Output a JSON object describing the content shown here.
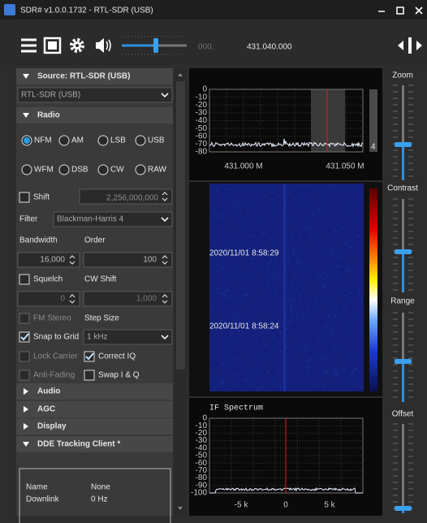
{
  "window": {
    "title": "SDR# v1.0.0.1732 - RTL-SDR (USB)"
  },
  "toolbar": {
    "frequency_prefix": "000.",
    "frequency": "431.040.000"
  },
  "source": {
    "header": "Source: RTL-SDR (USB)",
    "device": "RTL-SDR (USB)"
  },
  "radio": {
    "header": "Radio",
    "modes": [
      {
        "label": "NFM",
        "selected": true
      },
      {
        "label": "AM",
        "selected": false
      },
      {
        "label": "LSB",
        "selected": false
      },
      {
        "label": "USB",
        "selected": false
      },
      {
        "label": "WFM",
        "selected": false
      },
      {
        "label": "DSB",
        "selected": false
      },
      {
        "label": "CW",
        "selected": false
      },
      {
        "label": "RAW",
        "selected": false
      }
    ],
    "shift": {
      "label": "Shift",
      "checked": false,
      "value": "2,256,000,000"
    },
    "filter": {
      "label": "Filter",
      "value": "Blackman-Harris 4"
    },
    "bandwidth": {
      "label": "Bandwidth",
      "value": "16,000"
    },
    "order": {
      "label": "Order",
      "value": "100"
    },
    "squelch": {
      "label": "Squelch",
      "checked": false,
      "value": "0"
    },
    "cw_shift": {
      "label": "CW Shift",
      "value": "1,000"
    },
    "fm_stereo": {
      "label": "FM Stereo",
      "checked": false,
      "enabled": false
    },
    "step_size": {
      "label": "Step Size",
      "value": "1 kHz"
    },
    "snap_to_grid": {
      "label": "Snap to Grid",
      "checked": true
    },
    "lock_carrier": {
      "label": "Lock Carrier",
      "checked": false,
      "enabled": false
    },
    "correct_iq": {
      "label": "Correct IQ",
      "checked": true
    },
    "anti_fading": {
      "label": "Anti-Fading",
      "checked": false,
      "enabled": false
    },
    "swap_iq": {
      "label": "Swap I & Q",
      "checked": false
    }
  },
  "sections": [
    "Audio",
    "AGC",
    "Display",
    "DDE Tracking Client *"
  ],
  "dde": {
    "rows": [
      [
        "Name",
        "None"
      ],
      [
        "Downlink",
        "0 Hz"
      ]
    ]
  },
  "spectrum": {
    "yticks": [
      0,
      -10,
      -20,
      -30,
      -40,
      -50,
      -60,
      -70,
      -80
    ],
    "xlabels": [
      "431.000 M",
      "431.050 M"
    ],
    "level": 4
  },
  "waterfall": {
    "timestamps": [
      "2020/11/01 8:58:29",
      "2020/11/01 8:58:24"
    ]
  },
  "if_spectrum": {
    "title": "IF Spectrum",
    "yticks": [
      0,
      -10,
      -20,
      -30,
      -40,
      -50,
      -60,
      -70,
      -80,
      -90,
      -100
    ],
    "xlabels": [
      "-5 k",
      "0",
      "5 k"
    ]
  },
  "sliders": [
    "Zoom",
    "Contrast",
    "Range",
    "Offset"
  ]
}
